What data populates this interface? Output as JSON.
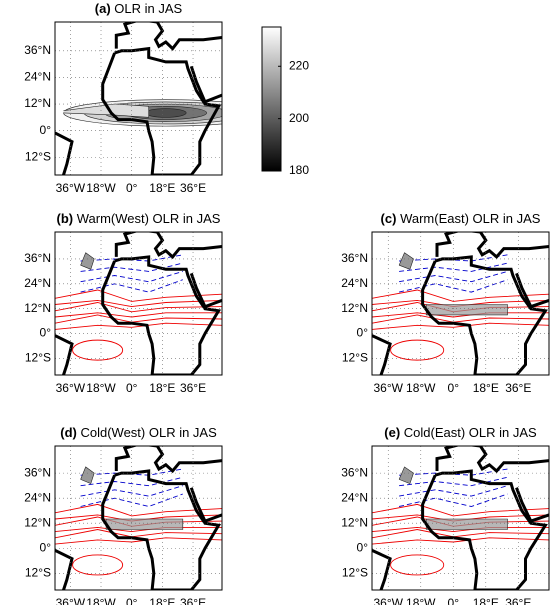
{
  "figure": {
    "lat_ticks": [
      {
        "value": 36,
        "label": "36°N"
      },
      {
        "value": 24,
        "label": "24°N"
      },
      {
        "value": 12,
        "label": "12°N"
      },
      {
        "value": 0,
        "label": "0°"
      },
      {
        "value": -12,
        "label": "12°S"
      }
    ],
    "lon_ticks": [
      {
        "value": -36,
        "label": "36°W"
      },
      {
        "value": -18,
        "label": "18°W"
      },
      {
        "value": 0,
        "label": "0°"
      },
      {
        "value": 18,
        "label": "18°E"
      },
      {
        "value": 36,
        "label": "36°E"
      }
    ],
    "lonlim": [
      -45,
      53
    ],
    "latlim": [
      -20,
      49
    ],
    "colorbar": {
      "clim": [
        180,
        235
      ],
      "ticks": [
        180,
        200,
        220
      ]
    },
    "panels": [
      {
        "label": "(a)",
        "title": "OLR in JAS"
      },
      {
        "label": "(b)",
        "title": "Warm(West) OLR in JAS"
      },
      {
        "label": "(c)",
        "title": "Warm(East) OLR in JAS"
      },
      {
        "label": "(d)",
        "title": "Cold(West) OLR in JAS"
      },
      {
        "label": "(e)",
        "title": "Cold(East) OLR in JAS"
      }
    ]
  }
}
